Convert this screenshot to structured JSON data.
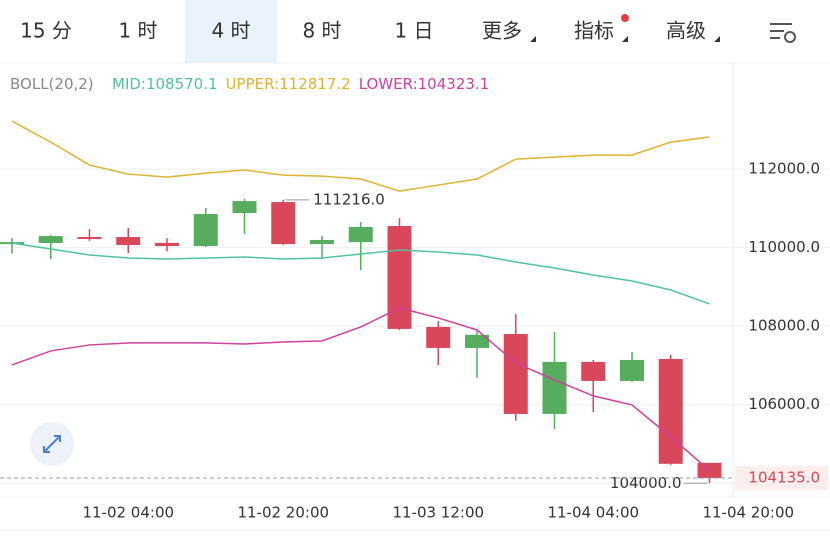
{
  "tabs": [
    "15 分",
    "1 时",
    "4 时",
    "8 时",
    "1 日",
    "更多",
    "指标",
    "高级"
  ],
  "active_tab": 2,
  "chart_data": {
    "type": "candlestick",
    "indicator": "BOLL(20,2)",
    "categories": [
      null,
      null,
      null,
      "11-02 04:00",
      null,
      null,
      null,
      "11-02 20:00",
      null,
      null,
      null,
      "11-03 12:00",
      null,
      null,
      null,
      "11-04 04:00",
      null,
      null,
      null,
      "11-04 20:00"
    ],
    "open": [
      110090,
      110117,
      110270,
      110270,
      110120,
      110040,
      110880,
      111160,
      110090,
      110140,
      110550,
      107980,
      107445,
      107800,
      105765,
      107090,
      106605,
      107165,
      104520,
      null
    ],
    "high": [
      110250,
      110320,
      110470,
      110500,
      110240,
      111010,
      111240,
      111216,
      110300,
      110650,
      110750,
      108130,
      107880,
      108310,
      107850,
      107140,
      107345,
      107270,
      104520,
      null
    ],
    "low": [
      109850,
      109710,
      110170,
      109860,
      109910,
      110015,
      110345,
      110065,
      109710,
      109430,
      107900,
      107010,
      106680,
      105590,
      105380,
      105815,
      106580,
      104470,
      104000,
      null
    ],
    "close": [
      110140,
      110295,
      110220,
      110065,
      110040,
      110855,
      111185,
      110090,
      110195,
      110525,
      107930,
      107445,
      107780,
      105765,
      107090,
      106605,
      107140,
      104495,
      104135,
      null
    ],
    "up_color": "#56ad5e",
    "down_color": "#d8475a",
    "series": [
      {
        "name": "MID:108570.1",
        "color": "#4fc2a2",
        "values": [
          110117,
          109964,
          109812,
          109735,
          109710,
          109735,
          109761,
          109710,
          109735,
          109837,
          109939,
          109888,
          109812,
          109634,
          109481,
          109303,
          109150,
          108921,
          108570.1,
          null
        ]
      },
      {
        "name": "UPPER:112817.2",
        "color": "#e0b12f",
        "values": [
          113221,
          112687,
          112102,
          111873,
          111796,
          111898,
          111975,
          111847,
          111822,
          111746,
          111440,
          111593,
          111746,
          112254,
          112305,
          112356,
          112356,
          112687,
          112817.2,
          null
        ]
      },
      {
        "name": "LOWER:104323.1",
        "color": "#d03f9e",
        "values": [
          107013,
          107369,
          107522,
          107573,
          107573,
          107573,
          107547,
          107598,
          107623,
          107980,
          108463,
          108209,
          107903,
          107064,
          106631,
          106224,
          105995,
          105181,
          104323.1,
          null
        ]
      }
    ],
    "ylim": [
      103650,
      114650
    ],
    "yticks": [
      {
        "value": 104000,
        "label": "104000.0"
      },
      {
        "value": 106000,
        "label": "106000.0"
      },
      {
        "value": 108000,
        "label": "108000.0"
      },
      {
        "value": 110000,
        "label": "110000.0"
      },
      {
        "value": 112000,
        "label": "112000.0"
      }
    ],
    "grid": true,
    "annotations": [
      {
        "index": 7,
        "value": 111216,
        "label": "111216.0"
      },
      {
        "index": 18,
        "value": 104000,
        "label": "104000.0"
      }
    ],
    "last_price": {
      "value": 104135,
      "label": "104135.0"
    }
  }
}
